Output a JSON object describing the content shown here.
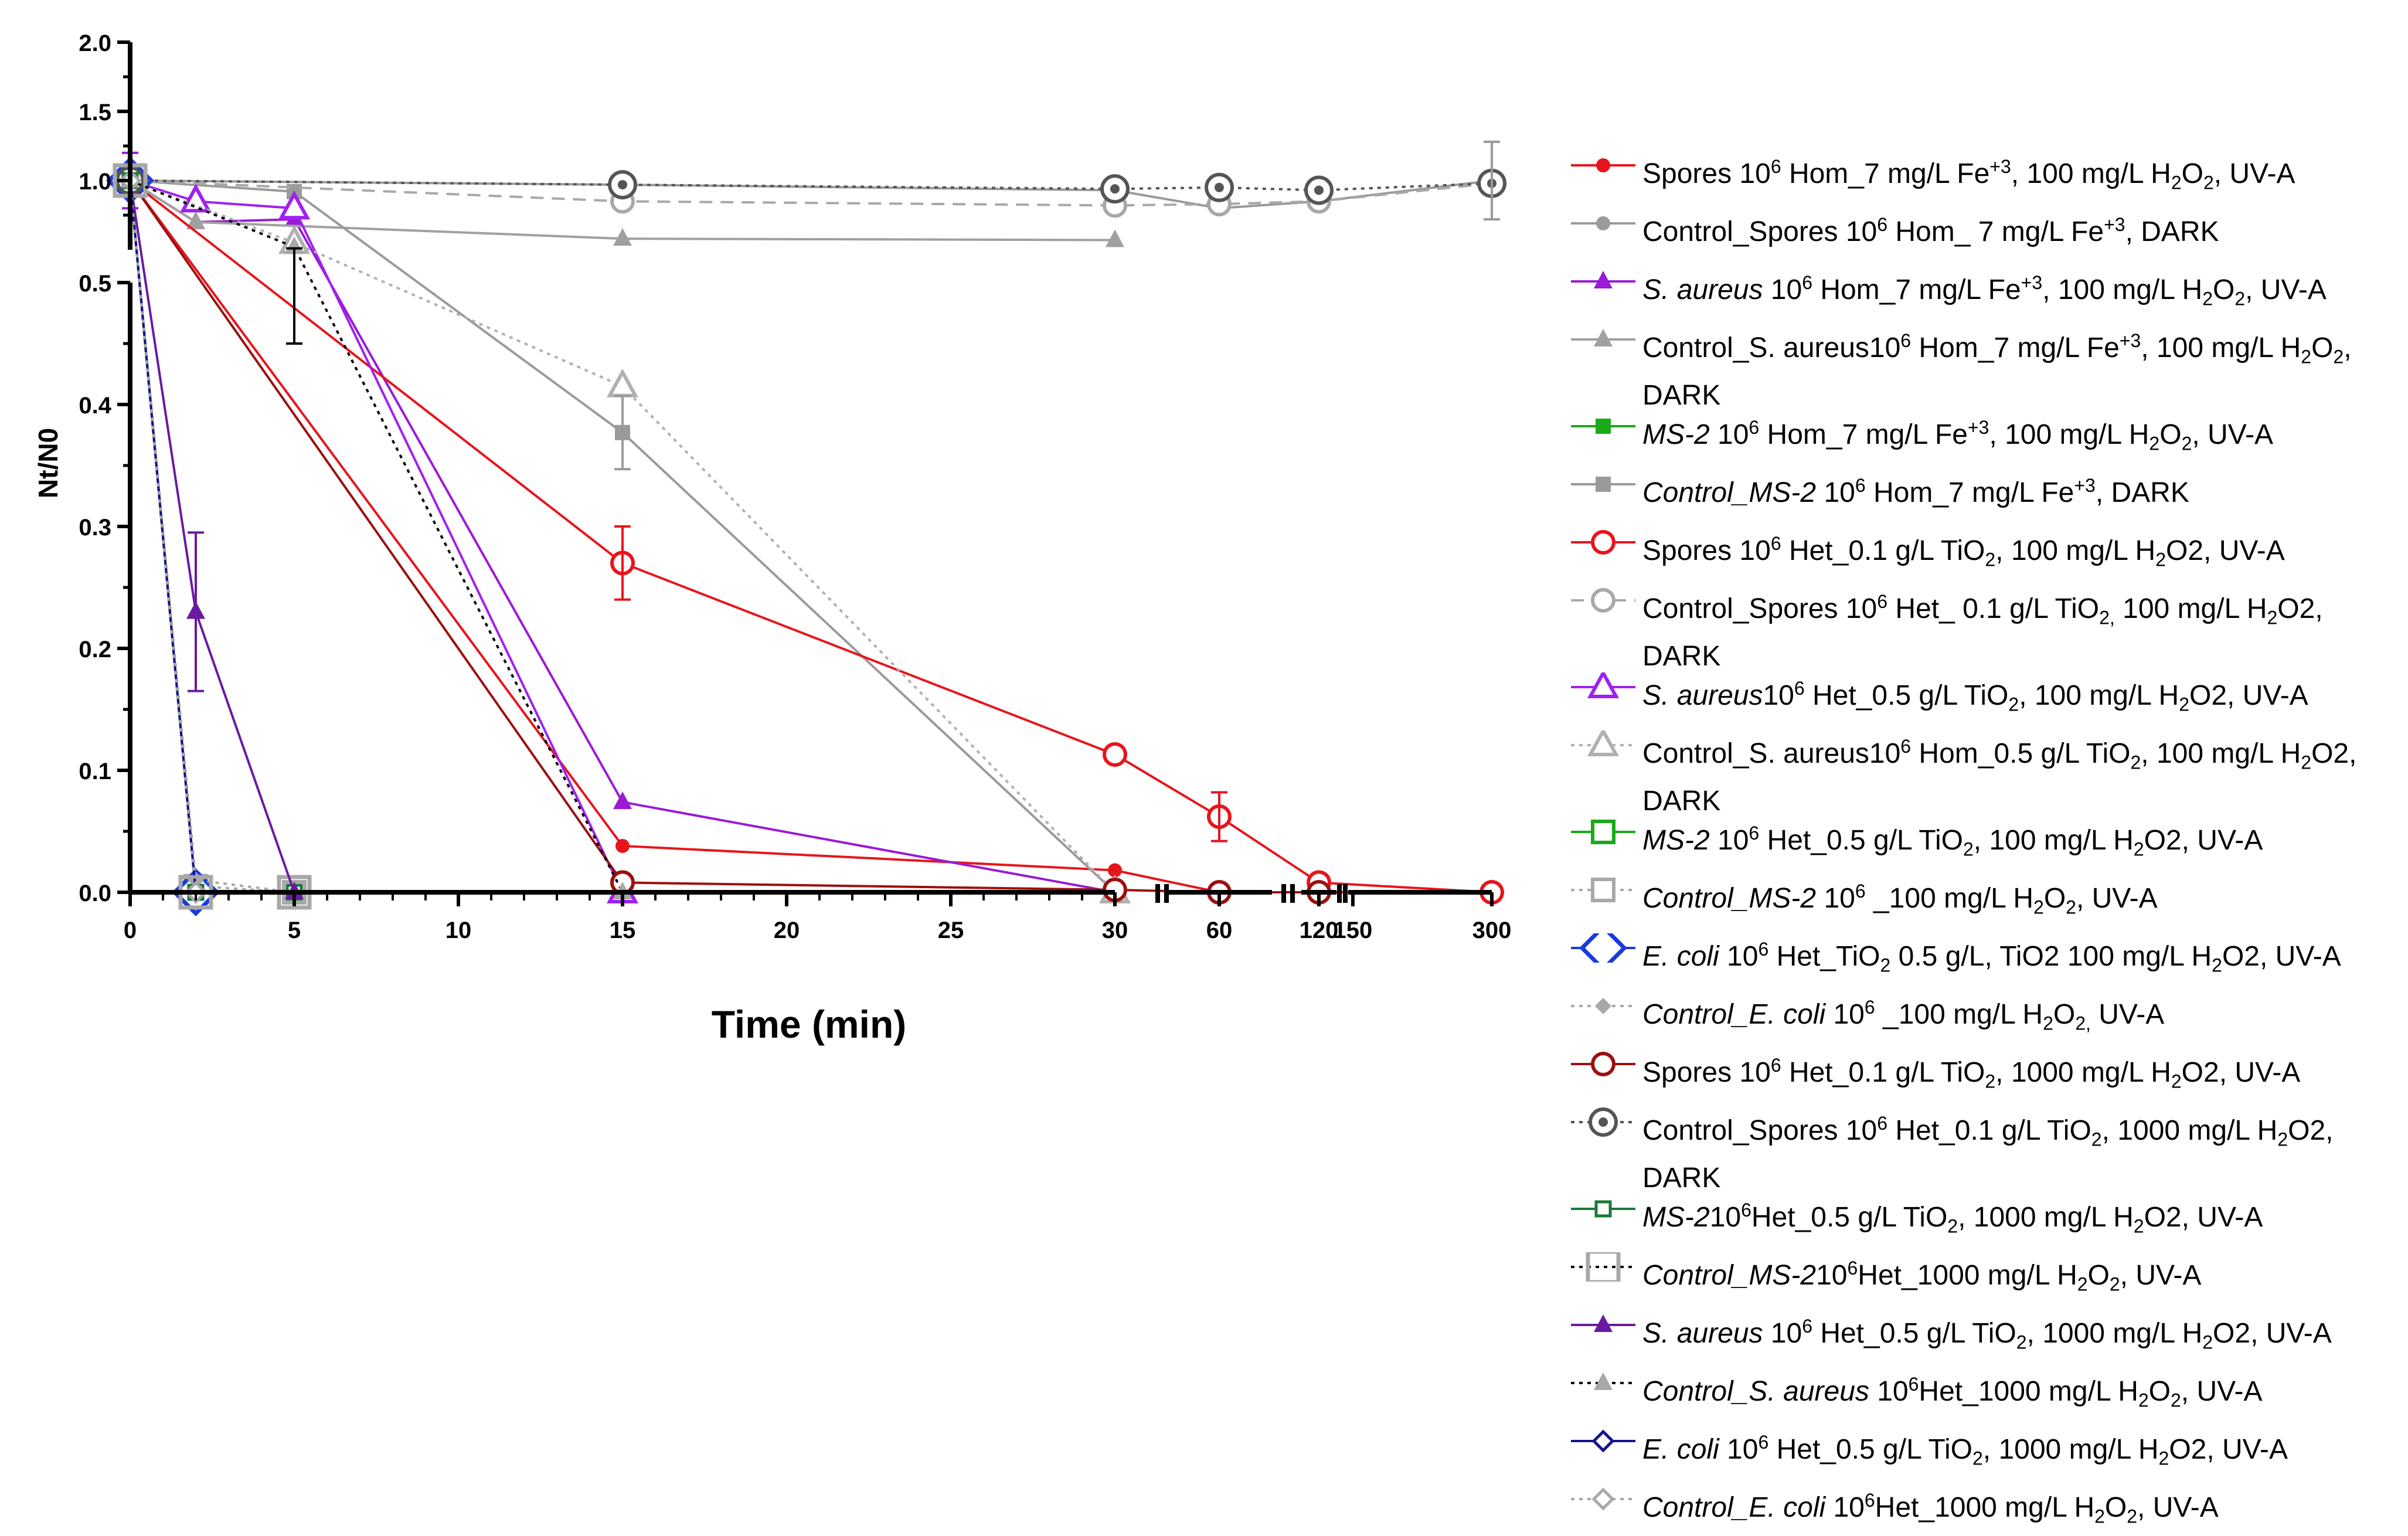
{
  "chart_data": {
    "type": "line",
    "title": "",
    "xlabel": "Time (min)",
    "ylabel": "Nt/N0",
    "y_lower_range": [
      0,
      0.5
    ],
    "y_upper_range": [
      0.5,
      2.0
    ],
    "y_lower_ticks": [
      "0.0",
      "0.1",
      "0.2",
      "0.3",
      "0.4",
      "0.5"
    ],
    "y_upper_ticks": [
      "0.5",
      "1.0",
      "1.5",
      "2.0"
    ],
    "x_segments": [
      {
        "range": [
          0,
          30
        ],
        "ticks": [
          "0",
          "5",
          "10",
          "15",
          "20",
          "25",
          "30"
        ]
      },
      {
        "range": [
          50,
          70
        ],
        "ticks": [
          "60"
        ]
      },
      {
        "range": [
          115,
          125
        ],
        "ticks": [
          "120"
        ]
      },
      {
        "range": [
          145,
          300
        ],
        "ticks": [
          "150",
          "300"
        ]
      }
    ],
    "series": [
      {
        "name": "Spores 10^6 Hom_7 mg/L Fe+3, 100 mg/L H2O2, UV-A",
        "color": "#e8141b",
        "marker": "circle-filled",
        "line": "solid",
        "points": [
          [
            0,
            1.0
          ],
          [
            15,
            0.038
          ],
          [
            30,
            0.018
          ],
          [
            60,
            0.0
          ],
          [
            120,
            0.0
          ],
          [
            300,
            0.0
          ]
        ]
      },
      {
        "name": "Control_Spores 10^6 Hom_ 7 mg/L Fe+3, DARK",
        "color": "#9a9a9a",
        "marker": "circle-filled",
        "line": "solid",
        "points": [
          [
            0,
            1.0
          ],
          [
            15,
            0.97
          ],
          [
            30,
            0.93
          ],
          [
            60,
            0.8
          ],
          [
            120,
            0.85
          ],
          [
            300,
            1.0
          ]
        ]
      },
      {
        "name": "S. aureus 10^6 Hom_7 mg/L Fe+3, 100 mg/L H2O2, UV-A",
        "color": "#9a1ad6",
        "marker": "triangle-filled",
        "line": "solid",
        "points": [
          [
            0,
            1.0
          ],
          [
            2,
            0.7
          ],
          [
            5,
            0.72
          ],
          [
            15,
            0.074
          ],
          [
            30,
            0.0
          ]
        ]
      },
      {
        "name": "Control_S. aureus10^6 Hom_7 mg/L Fe+3, 100 mg/L H2O2, DARK",
        "color": "#a0a0a0",
        "marker": "triangle-filled",
        "line": "solid",
        "points": [
          [
            0,
            1.0
          ],
          [
            2,
            0.7
          ],
          [
            15,
            0.58
          ],
          [
            30,
            0.57
          ]
        ]
      },
      {
        "name": "MS-2 10^6 Hom_7 mg/L Fe+3, 100 mg/L H2O2, UV-A",
        "color": "#1aaa1a",
        "marker": "square-filled",
        "line": "solid",
        "points": [
          [
            0,
            1.0
          ],
          [
            2,
            0.0
          ],
          [
            5,
            0.0
          ]
        ]
      },
      {
        "name": "Control_MS-2 10^6 Hom_7 mg/L Fe+3, DARK",
        "color": "#9a9a9a",
        "marker": "square-filled",
        "line": "solid",
        "points": [
          [
            0,
            1.0
          ],
          [
            5,
            0.92
          ],
          [
            15,
            0.377
          ],
          [
            30,
            0.0
          ]
        ]
      },
      {
        "name": "Spores 10^6 Het_0.1 g/L TiO2, 100 mg/L H2O2, UV-A",
        "color": "#e8141b",
        "marker": "circle-open",
        "line": "solid",
        "points": [
          [
            0,
            1.0
          ],
          [
            15,
            0.27
          ],
          [
            30,
            0.113
          ],
          [
            60,
            0.062
          ],
          [
            120,
            0.008
          ],
          [
            300,
            0.0
          ]
        ]
      },
      {
        "name": "Control_Spores 10^6 Het_ 0.1 g/L TiO2, 100 mg/L H2O2, DARK",
        "color": "#a8a8a8",
        "marker": "circle-open",
        "line": "dashed",
        "points": [
          [
            0,
            1.0
          ],
          [
            15,
            0.85
          ],
          [
            30,
            0.82
          ],
          [
            60,
            0.83
          ],
          [
            120,
            0.85
          ],
          [
            300,
            0.98
          ]
        ]
      },
      {
        "name": "S. aureus10^6 Het_0.5 g/L TiO2, 100 mg/L H2O2, UV-A",
        "color": "#a020f0",
        "marker": "triangle-open",
        "line": "solid",
        "points": [
          [
            0,
            1.0
          ],
          [
            2,
            0.85
          ],
          [
            5,
            0.8
          ],
          [
            15,
            0.0
          ]
        ]
      },
      {
        "name": "Control_S. aureus10^6 Hom_0.5 g/L TiO2, 100 mg/L H2O2, DARK",
        "color": "#b0b0b0",
        "marker": "triangle-open",
        "line": "dotted",
        "points": [
          [
            0,
            1.0
          ],
          [
            5,
            0.55
          ],
          [
            15,
            0.415
          ],
          [
            30,
            0.0
          ]
        ]
      },
      {
        "name": "MS-2 10^6 Het_0.5 g/L TiO2, 100 mg/L H2O2, UV-A",
        "color": "#1aaa1a",
        "marker": "square-open",
        "line": "solid",
        "points": [
          [
            0,
            1.0
          ],
          [
            2,
            0.0
          ],
          [
            5,
            0.0
          ]
        ]
      },
      {
        "name": "Control_MS-2 10^6 _100 mg/L H2O2, UV-A",
        "color": "#a8a8a8",
        "marker": "square-open",
        "line": "dotted",
        "points": [
          [
            0,
            1.0
          ],
          [
            2,
            0.005
          ],
          [
            5,
            0.0
          ]
        ]
      },
      {
        "name": "E. coli 10^6 Het_TiO2 0.5 g/L, TiO2 100 mg/L H2O2, UV-A",
        "color": "#1a3ae0",
        "marker": "diamond-open",
        "line": "solid",
        "points": [
          [
            0,
            1.0
          ],
          [
            2,
            0.0
          ]
        ]
      },
      {
        "name": "Control_E. coli 10^6 _100 mg/L H2O2, UV-A",
        "color": "#a8a8a8",
        "marker": "diamond-filled",
        "line": "dotted",
        "points": [
          [
            0,
            1.0
          ],
          [
            2,
            0.01
          ],
          [
            5,
            0.0
          ]
        ]
      },
      {
        "name": "Spores 10^6 Het_0.1 g/L TiO2, 1000 mg/L H2O2, UV-A",
        "color": "#9b1010",
        "marker": "circle-open",
        "line": "solid",
        "points": [
          [
            0,
            1.0
          ],
          [
            15,
            0.008
          ],
          [
            30,
            0.002
          ],
          [
            60,
            0.0
          ],
          [
            120,
            0.0
          ]
        ]
      },
      {
        "name": "Control_Spores 10^6 Het_0.1 g/L TiO2, 1000 mg/L H2O2, DARK",
        "color": "#555555",
        "marker": "circle-double",
        "line": "dotted",
        "points": [
          [
            0,
            1.0
          ],
          [
            15,
            0.97
          ],
          [
            30,
            0.94
          ],
          [
            60,
            0.95
          ],
          [
            120,
            0.93
          ],
          [
            300,
            0.98
          ]
        ]
      },
      {
        "name": "MS-210^6Het_0.5 g/L TiO2, 1000 mg/L H2O2, UV-A",
        "color": "#1a7a3a",
        "marker": "square-small",
        "line": "solid",
        "points": [
          [
            0,
            1.0
          ],
          [
            2,
            0.0
          ],
          [
            5,
            0.0
          ]
        ]
      },
      {
        "name": "Control_MS-210^6Het_1000 mg/L H2O2, UV-A",
        "color": "#a8a8a8",
        "marker": "square-open-large",
        "line": "dotted-black",
        "points": [
          [
            0,
            1.0
          ],
          [
            2,
            0.0
          ],
          [
            5,
            0.0
          ]
        ]
      },
      {
        "name": "S. aureus 10^6 Het_0.5 g/L TiO2, 1000 mg/L H2O2, UV-A",
        "color": "#6a1aa0",
        "marker": "triangle-filled",
        "line": "solid",
        "points": [
          [
            0,
            1.0
          ],
          [
            2,
            0.23
          ],
          [
            5,
            0.0
          ]
        ]
      },
      {
        "name": "Control_S. aureus 10^6Het_1000 mg/L H2O2, UV-A",
        "color": "#a8a8a8",
        "marker": "triangle-filled",
        "line": "dotted-black",
        "points": [
          [
            0,
            1.0
          ],
          [
            5,
            0.52
          ],
          [
            15,
            0.0
          ]
        ]
      },
      {
        "name": "E. coli 10^6 Het_0.5 g/L TiO2, 1000 mg/L H2O2, UV-A",
        "color": "#14148a",
        "marker": "diamond-small",
        "line": "solid",
        "points": [
          [
            0,
            1.0
          ],
          [
            2,
            0.0
          ]
        ]
      },
      {
        "name": "Control_E. coli 10^6Het_1000 mg/L H2O2, UV-A",
        "color": "#a8a8a8",
        "marker": "diamond-small",
        "line": "dotted",
        "points": [
          [
            0,
            1.0
          ],
          [
            2,
            0.0
          ]
        ]
      }
    ],
    "error_bars": [
      {
        "x": 15,
        "y": 0.27,
        "err": 0.03,
        "color": "#e8141b"
      },
      {
        "x": 60,
        "y": 0.062,
        "err": 0.02,
        "color": "#e8141b"
      },
      {
        "x": 2,
        "y": 0.23,
        "err": 0.065,
        "color": "#6a1aa0"
      },
      {
        "x": 15,
        "y": 0.377,
        "err": 0.03,
        "color": "#9a9a9a"
      },
      {
        "x": 5,
        "y": 0.48,
        "err": 0.03,
        "color": "#000000"
      },
      {
        "x": 300,
        "y": 1.0,
        "err": 0.28,
        "color": "#9a9a9a"
      },
      {
        "x": 0,
        "y": 1.0,
        "err": 0.2,
        "color": "#9a1ad6"
      }
    ]
  },
  "legend": [
    {
      "italic": "",
      "pre": "Spores 10",
      "sup1": "6",
      "rest": " Hom_7 mg/L Fe",
      "sup2": "+3",
      "rest2": ", 100 mg/L H",
      "sub1": "2",
      "rest3": "O",
      "sub2": "2",
      "rest4": ", UV-A",
      "line2": ""
    },
    {
      "italic": "",
      "pre": "Control_Spores 10",
      "sup1": "6",
      "rest": " Hom_ 7 mg/L Fe",
      "sup2": "+3",
      "rest2": ", DARK",
      "sub1": "",
      "rest3": "",
      "sub2": "",
      "rest4": "",
      "line2": ""
    },
    {
      "italic": "S. aureus",
      "pre": " 10",
      "sup1": "6",
      "rest": " Hom_7 mg/L Fe",
      "sup2": "+3",
      "rest2": ", 100 mg/L H",
      "sub1": "2",
      "rest3": "O",
      "sub2": "2",
      "rest4": ", UV-A",
      "line2": ""
    },
    {
      "italic": "",
      "pre": "Control_S. aureus10",
      "sup1": "6",
      "rest": " Hom_7 mg/L Fe",
      "sup2": "+3",
      "rest2": ", 100 mg/L H",
      "sub1": "2",
      "rest3": "O",
      "sub2": "2",
      "rest4": ",",
      "line2": "DARK"
    },
    {
      "italic": "MS-2",
      "pre": " 10",
      "sup1": "6",
      "rest": " Hom_7 mg/L Fe",
      "sup2": "+3",
      "rest2": ", 100 mg/L H",
      "sub1": "2",
      "rest3": "O",
      "sub2": "2",
      "rest4": ", UV-A",
      "line2": ""
    },
    {
      "italic": "Control_MS-2",
      "pre": " 10",
      "sup1": "6",
      "rest": " Hom_7 mg/L Fe",
      "sup2": "+3",
      "rest2": ", DARK",
      "sub1": "",
      "rest3": "",
      "sub2": "",
      "rest4": "",
      "line2": ""
    },
    {
      "italic": "",
      "pre": "Spores 10",
      "sup1": "6",
      "rest": " Het_0.1 g/L TiO",
      "sup2": "",
      "rest2": "",
      "sub1": "2",
      "rest3": ", 100 mg/L H",
      "sub2": "2",
      "rest4": "O2, UV-A",
      "line2": ""
    },
    {
      "italic": "",
      "pre": "Control_Spores 10",
      "sup1": "6",
      "rest": " Het_ 0.1 g/L TiO",
      "sup2": "",
      "rest2": "",
      "sub1": "2,",
      "rest3": " 100 mg/L H",
      "sub2": "2",
      "rest4": "O2,",
      "line2": "DARK"
    },
    {
      "italic": "S. aureus",
      "pre": "10",
      "sup1": "6",
      "rest": " Het_0.5 g/L TiO",
      "sup2": "",
      "rest2": "",
      "sub1": "2",
      "rest3": ", 100 mg/L H",
      "sub2": "2",
      "rest4": "O2, UV-A",
      "line2": ""
    },
    {
      "italic": "",
      "pre": "Control_S. aureus10",
      "sup1": "6",
      "rest": " Hom_0.5 g/L TiO",
      "sup2": "",
      "rest2": "",
      "sub1": "2",
      "rest3": ", 100 mg/L H",
      "sub2": "2",
      "rest4": "O2,",
      "line2": "DARK"
    },
    {
      "italic": "MS-2",
      "pre": " 10",
      "sup1": "6",
      "rest": " Het_0.5 g/L TiO",
      "sup2": "",
      "rest2": "",
      "sub1": "2",
      "rest3": ", 100 mg/L H",
      "sub2": "2",
      "rest4": "O2, UV-A",
      "line2": ""
    },
    {
      "italic": "Control_MS-2",
      "pre": " 10",
      "sup1": "6",
      "rest": " _100 mg/L H",
      "sup2": "",
      "rest2": "",
      "sub1": "2",
      "rest3": "O",
      "sub2": "2",
      "rest4": ", UV-A",
      "line2": ""
    },
    {
      "italic": "E. coli",
      "pre": " 10",
      "sup1": "6",
      "rest": " Het_TiO",
      "sup2": "",
      "rest2": "",
      "sub1": "2",
      "rest3": " 0.5 g/L, TiO2 100 mg/L H",
      "sub2": "2",
      "rest4": "O2, UV-A",
      "line2": ""
    },
    {
      "italic": "Control_E. coli",
      "pre": " 10",
      "sup1": "6",
      "rest": " _100 mg/L H",
      "sup2": "",
      "rest2": "",
      "sub1": "2",
      "rest3": "O",
      "sub2": "2,",
      "rest4": " UV-A",
      "line2": ""
    },
    {
      "italic": "",
      "pre": "Spores 10",
      "sup1": "6",
      "rest": " Het_0.1 g/L TiO",
      "sup2": "",
      "rest2": "",
      "sub1": "2",
      "rest3": ", 1000 mg/L H",
      "sub2": "2",
      "rest4": "O2, UV-A",
      "line2": ""
    },
    {
      "italic": "",
      "pre": "Control_Spores 10",
      "sup1": "6",
      "rest": " Het_0.1 g/L TiO",
      "sup2": "",
      "rest2": "",
      "sub1": "2",
      "rest3": ", 1000 mg/L H",
      "sub2": "2",
      "rest4": "O2,",
      "line2": "DARK"
    },
    {
      "italic": "MS-2",
      "pre": "10",
      "sup1": "6",
      "rest": "Het_0.5 g/L TiO",
      "sup2": "",
      "rest2": "",
      "sub1": "2",
      "rest3": ", 1000 mg/L H",
      "sub2": "2",
      "rest4": "O2, UV-A",
      "line2": ""
    },
    {
      "italic": "Control_MS-2",
      "pre": "10",
      "sup1": "6",
      "rest": "Het_1000 mg/L H",
      "sup2": "",
      "rest2": "",
      "sub1": "2",
      "rest3": "O",
      "sub2": "2",
      "rest4": ", UV-A",
      "line2": ""
    },
    {
      "italic": "S. aureus",
      "pre": " 10",
      "sup1": "6",
      "rest": " Het_0.5 g/L TiO",
      "sup2": "",
      "rest2": "",
      "sub1": "2",
      "rest3": ", 1000 mg/L H",
      "sub2": "2",
      "rest4": "O2, UV-A",
      "line2": ""
    },
    {
      "italic": "Control_S. aureus",
      "pre": " 10",
      "sup1": "6",
      "rest": "Het_1000 mg/L H",
      "sup2": "",
      "rest2": "",
      "sub1": "2",
      "rest3": "O",
      "sub2": "2",
      "rest4": ", UV-A",
      "line2": ""
    },
    {
      "italic": "E. coli",
      "pre": " 10",
      "sup1": "6",
      "rest": " Het_0.5 g/L TiO",
      "sup2": "",
      "rest2": "",
      "sub1": "2",
      "rest3": ", 1000 mg/L H",
      "sub2": "2",
      "rest4": "O2, UV-A",
      "line2": ""
    },
    {
      "italic": "Control_E. coli",
      "pre": " 10",
      "sup1": "6",
      "rest": "Het_1000 mg/L H",
      "sup2": "",
      "rest2": "",
      "sub1": "2",
      "rest3": "O",
      "sub2": "2",
      "rest4": ", UV-A",
      "line2": ""
    }
  ]
}
